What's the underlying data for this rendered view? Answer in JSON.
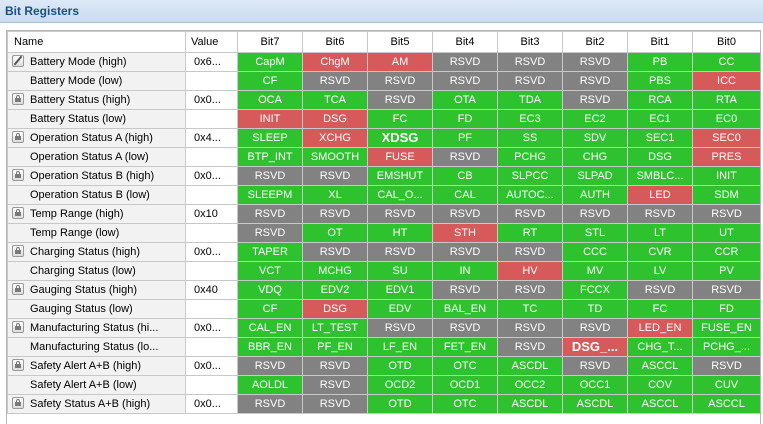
{
  "panel": {
    "title": "Bit Registers"
  },
  "columns": [
    "Name",
    "Value",
    "Bit7",
    "Bit6",
    "Bit5",
    "Bit4",
    "Bit3",
    "Bit2",
    "Bit1",
    "Bit0"
  ],
  "colors": {
    "set": "#2ec32e",
    "alert": "#d65a59",
    "reserved": "#828282"
  },
  "rows": [
    {
      "name": "Battery Mode (high)",
      "icon": "pencil-icon",
      "value": "0x6...",
      "bits": [
        [
          "CapM",
          "g"
        ],
        [
          "ChgM",
          "r"
        ],
        [
          "AM",
          "r"
        ],
        [
          "RSVD",
          "y"
        ],
        [
          "RSVD",
          "y"
        ],
        [
          "RSVD",
          "y"
        ],
        [
          "PB",
          "g"
        ],
        [
          "CC",
          "g"
        ]
      ]
    },
    {
      "name": "Battery Mode (low)",
      "icon": "",
      "value": "",
      "bits": [
        [
          "CF",
          "g"
        ],
        [
          "RSVD",
          "y"
        ],
        [
          "RSVD",
          "y"
        ],
        [
          "RSVD",
          "y"
        ],
        [
          "RSVD",
          "y"
        ],
        [
          "RSVD",
          "y"
        ],
        [
          "PBS",
          "g"
        ],
        [
          "ICC",
          "r"
        ]
      ]
    },
    {
      "name": "Battery Status (high)",
      "icon": "lock-icon",
      "value": "0x0...",
      "bits": [
        [
          "OCA",
          "g"
        ],
        [
          "TCA",
          "g"
        ],
        [
          "RSVD",
          "y"
        ],
        [
          "OTA",
          "g"
        ],
        [
          "TDA",
          "g"
        ],
        [
          "RSVD",
          "y"
        ],
        [
          "RCA",
          "g"
        ],
        [
          "RTA",
          "g"
        ]
      ]
    },
    {
      "name": "Battery Status (low)",
      "icon": "",
      "value": "",
      "bits": [
        [
          "INIT",
          "r"
        ],
        [
          "DSG",
          "r"
        ],
        [
          "FC",
          "g"
        ],
        [
          "FD",
          "g"
        ],
        [
          "EC3",
          "g"
        ],
        [
          "EC2",
          "g"
        ],
        [
          "EC1",
          "g"
        ],
        [
          "EC0",
          "g"
        ]
      ]
    },
    {
      "name": "Operation Status A (high)",
      "icon": "lock-icon",
      "value": "0x4...",
      "bits": [
        [
          "SLEEP",
          "g"
        ],
        [
          "XCHG",
          "r"
        ],
        [
          "XDSG",
          "gb"
        ],
        [
          "PF",
          "g"
        ],
        [
          "SS",
          "g"
        ],
        [
          "SDV",
          "g"
        ],
        [
          "SEC1",
          "g"
        ],
        [
          "SEC0",
          "r"
        ]
      ]
    },
    {
      "name": "Operation Status A (low)",
      "icon": "",
      "value": "",
      "bits": [
        [
          "BTP_INT",
          "g"
        ],
        [
          "SMOOTH",
          "g"
        ],
        [
          "FUSE",
          "r"
        ],
        [
          "RSVD",
          "y"
        ],
        [
          "PCHG",
          "g"
        ],
        [
          "CHG",
          "g"
        ],
        [
          "DSG",
          "g"
        ],
        [
          "PRES",
          "r"
        ]
      ]
    },
    {
      "name": "Operation Status B (high)",
      "icon": "lock-icon",
      "value": "0x0...",
      "bits": [
        [
          "RSVD",
          "y"
        ],
        [
          "RSVD",
          "y"
        ],
        [
          "EMSHUT",
          "g"
        ],
        [
          "CB",
          "g"
        ],
        [
          "SLPCC",
          "g"
        ],
        [
          "SLPAD",
          "g"
        ],
        [
          "SMBLC...",
          "g"
        ],
        [
          "INIT",
          "g"
        ]
      ]
    },
    {
      "name": "Operation Status B (low)",
      "icon": "",
      "value": "",
      "bits": [
        [
          "SLEEPM",
          "g"
        ],
        [
          "XL",
          "g"
        ],
        [
          "CAL_O...",
          "g"
        ],
        [
          "CAL",
          "g"
        ],
        [
          "AUTOC...",
          "g"
        ],
        [
          "AUTH",
          "g"
        ],
        [
          "LED",
          "r"
        ],
        [
          "SDM",
          "g"
        ]
      ]
    },
    {
      "name": "Temp Range (high)",
      "icon": "lock-icon",
      "value": "0x10",
      "bits": [
        [
          "RSVD",
          "y"
        ],
        [
          "RSVD",
          "y"
        ],
        [
          "RSVD",
          "y"
        ],
        [
          "RSVD",
          "y"
        ],
        [
          "RSVD",
          "y"
        ],
        [
          "RSVD",
          "y"
        ],
        [
          "RSVD",
          "y"
        ],
        [
          "RSVD",
          "y"
        ]
      ]
    },
    {
      "name": "Temp Range (low)",
      "icon": "",
      "value": "",
      "bits": [
        [
          "RSVD",
          "y"
        ],
        [
          "OT",
          "g"
        ],
        [
          "HT",
          "g"
        ],
        [
          "STH",
          "r"
        ],
        [
          "RT",
          "g"
        ],
        [
          "STL",
          "g"
        ],
        [
          "LT",
          "g"
        ],
        [
          "UT",
          "g"
        ]
      ]
    },
    {
      "name": "Charging Status (high)",
      "icon": "lock-icon",
      "value": "0x0...",
      "bits": [
        [
          "TAPER",
          "g"
        ],
        [
          "RSVD",
          "y"
        ],
        [
          "RSVD",
          "y"
        ],
        [
          "RSVD",
          "y"
        ],
        [
          "RSVD",
          "y"
        ],
        [
          "CCC",
          "g"
        ],
        [
          "CVR",
          "g"
        ],
        [
          "CCR",
          "g"
        ]
      ]
    },
    {
      "name": "Charging Status (low)",
      "icon": "",
      "value": "",
      "bits": [
        [
          "VCT",
          "g"
        ],
        [
          "MCHG",
          "g"
        ],
        [
          "SU",
          "g"
        ],
        [
          "IN",
          "g"
        ],
        [
          "HV",
          "r"
        ],
        [
          "MV",
          "g"
        ],
        [
          "LV",
          "g"
        ],
        [
          "PV",
          "g"
        ]
      ]
    },
    {
      "name": "Gauging Status (high)",
      "icon": "lock-icon",
      "value": "0x40",
      "bits": [
        [
          "VDQ",
          "g"
        ],
        [
          "EDV2",
          "g"
        ],
        [
          "EDV1",
          "g"
        ],
        [
          "RSVD",
          "y"
        ],
        [
          "RSVD",
          "y"
        ],
        [
          "FCCX",
          "g"
        ],
        [
          "RSVD",
          "y"
        ],
        [
          "RSVD",
          "y"
        ]
      ]
    },
    {
      "name": "Gauging Status (low)",
      "icon": "",
      "value": "",
      "bits": [
        [
          "CF",
          "g"
        ],
        [
          "DSG",
          "r"
        ],
        [
          "EDV",
          "g"
        ],
        [
          "BAL_EN",
          "g"
        ],
        [
          "TC",
          "g"
        ],
        [
          "TD",
          "g"
        ],
        [
          "FC",
          "g"
        ],
        [
          "FD",
          "g"
        ]
      ]
    },
    {
      "name": "Manufacturing Status (hi...",
      "icon": "lock-icon",
      "value": "0x0...",
      "bits": [
        [
          "CAL_EN",
          "g"
        ],
        [
          "LT_TEST",
          "g"
        ],
        [
          "RSVD",
          "y"
        ],
        [
          "RSVD",
          "y"
        ],
        [
          "RSVD",
          "y"
        ],
        [
          "RSVD",
          "y"
        ],
        [
          "LED_EN",
          "r"
        ],
        [
          "FUSE_EN",
          "g"
        ]
      ]
    },
    {
      "name": "Manufacturing Status (lo...",
      "icon": "",
      "value": "",
      "bits": [
        [
          "BBR_EN",
          "g"
        ],
        [
          "PF_EN",
          "g"
        ],
        [
          "LF_EN",
          "g"
        ],
        [
          "FET_EN",
          "g"
        ],
        [
          "RSVD",
          "y"
        ],
        [
          "DSG_...",
          "rb"
        ],
        [
          "CHG_T...",
          "g"
        ],
        [
          "PCHG_...",
          "g"
        ]
      ]
    },
    {
      "name": "Safety Alert A+B (high)",
      "icon": "lock-icon",
      "value": "0x0...",
      "bits": [
        [
          "RSVD",
          "y"
        ],
        [
          "RSVD",
          "y"
        ],
        [
          "OTD",
          "g"
        ],
        [
          "OTC",
          "g"
        ],
        [
          "ASCDL",
          "g"
        ],
        [
          "RSVD",
          "y"
        ],
        [
          "ASCCL",
          "g"
        ],
        [
          "RSVD",
          "y"
        ]
      ]
    },
    {
      "name": "Safety Alert A+B (low)",
      "icon": "",
      "value": "",
      "bits": [
        [
          "AOLDL",
          "g"
        ],
        [
          "RSVD",
          "y"
        ],
        [
          "OCD2",
          "g"
        ],
        [
          "OCD1",
          "g"
        ],
        [
          "OCC2",
          "g"
        ],
        [
          "OCC1",
          "g"
        ],
        [
          "COV",
          "g"
        ],
        [
          "CUV",
          "g"
        ]
      ]
    },
    {
      "name": "Safety Status A+B (high)",
      "icon": "lock-icon",
      "value": "0x0...",
      "bits": [
        [
          "RSVD",
          "y"
        ],
        [
          "RSVD",
          "y"
        ],
        [
          "OTD",
          "g"
        ],
        [
          "OTC",
          "g"
        ],
        [
          "ASCDL",
          "g"
        ],
        [
          "ASCDL",
          "g"
        ],
        [
          "ASCCL",
          "g"
        ],
        [
          "ASCCL",
          "g"
        ]
      ]
    }
  ]
}
